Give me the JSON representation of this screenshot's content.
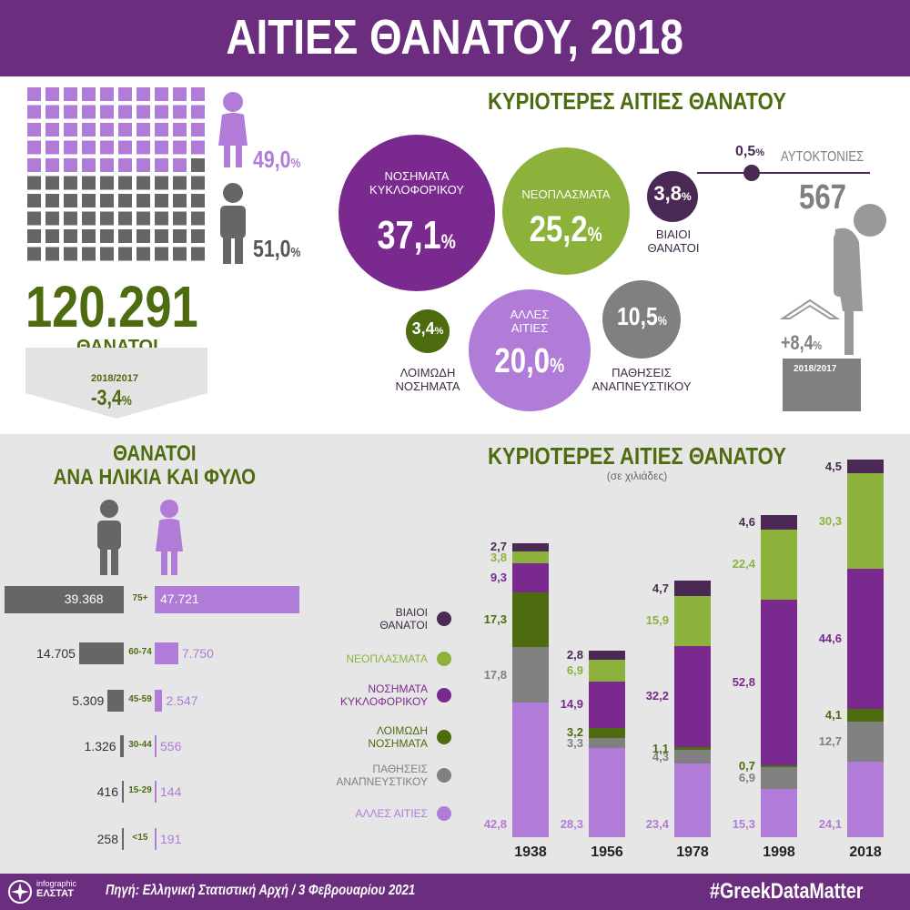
{
  "header": {
    "title": "ΑΙΤΙΕΣ ΘΑΝΑΤΟΥ, 2018"
  },
  "colors": {
    "purple_dark": "#6b2d7e",
    "violet": "#7a2a8f",
    "lilac": "#b07cd8",
    "green_light": "#8db23c",
    "green_dark": "#4d6b0f",
    "gray": "#808080",
    "violent": "#4a2a55"
  },
  "totals": {
    "women_pct": "49,0",
    "men_pct": "51,0",
    "percent_sign": "%",
    "deaths_total": "120.291",
    "deaths_label": "ΘΑΝΑΤΟΙ",
    "change_period": "2018/2017",
    "change_value": "-3,4",
    "women_squares": 49
  },
  "causes": {
    "title": "ΚΥΡΙΟΤΕΡΕΣ ΑΙΤΙΕΣ ΘΑΝΑΤΟΥ",
    "circulatory": {
      "label1": "ΝΟΣΗΜΑΤΑ",
      "label2": "ΚΥΚΛΟΦΟΡΙΚΟΥ",
      "value": "37,1"
    },
    "neoplasms": {
      "label": "ΝΕΟΠΛΑΣΜΑΤΑ",
      "value": "25,2"
    },
    "violent": {
      "value": "3,8",
      "label1": "ΒΙΑΙΟΙ",
      "label2": "ΘΑΝΑΤΟΙ"
    },
    "suicides": {
      "value": "0,5",
      "label": "ΑΥΤΟΚΤΟΝΙΕΣ",
      "count": "567",
      "change": "+8,4",
      "period": "2018/2017"
    },
    "infectious": {
      "value": "3,4",
      "label1": "ΛΟΙΜΩΔΗ",
      "label2": "ΝΟΣΗΜΑΤΑ"
    },
    "other": {
      "label1": "ΑΛΛΕΣ",
      "label2": "ΑΙΤΙΕΣ",
      "value": "20,0"
    },
    "respiratory": {
      "value": "10,5",
      "label1": "ΠΑΘΗΣΕΙΣ",
      "label2": "ΑΝΑΠΝΕΥΣΤΙΚΟΥ"
    }
  },
  "age_sex": {
    "title1": "ΘΑΝΑΤΟΙ",
    "title2": "ΑΝΑ ΗΛΙΚΙΑ ΚΑΙ ΦΥΛΟ",
    "rows": [
      {
        "group": "75+",
        "men": 39368,
        "women": 47721,
        "men_label": "39.368",
        "women_label": "47.721"
      },
      {
        "group": "60-74",
        "men": 14705,
        "women": 7750,
        "men_label": "14.705",
        "women_label": "7.750"
      },
      {
        "group": "45-59",
        "men": 5309,
        "women": 2547,
        "men_label": "5.309",
        "women_label": "2.547"
      },
      {
        "group": "30-44",
        "men": 1326,
        "women": 556,
        "men_label": "1.326",
        "women_label": "556"
      },
      {
        "group": "15-29",
        "men": 416,
        "women": 144,
        "men_label": "416",
        "women_label": "144"
      },
      {
        "group": "<15",
        "men": 258,
        "women": 191,
        "men_label": "258",
        "women_label": "191"
      }
    ]
  },
  "chart_data": {
    "type": "bar",
    "stacked": true,
    "title": "ΚΥΡΙΟΤΕΡΕΣ ΑΙΤΙΕΣ ΘΑΝΑΤΟΥ",
    "subtitle": "(σε χιλιάδες)",
    "categories": [
      "1938",
      "1956",
      "1978",
      "1998",
      "2018"
    ],
    "series": [
      {
        "name": "ΑΛΛΕΣ ΑΙΤΙΕΣ",
        "color": "#b07cd8",
        "values": [
          42.8,
          28.3,
          23.4,
          15.3,
          24.1
        ],
        "labels": [
          "42,8",
          "28,3",
          "23,4",
          "15,3",
          "24,1"
        ]
      },
      {
        "name": "ΠΑΘΗΣΕΙΣ ΑΝΑΠΝΕΥΣΤΙΚΟΥ",
        "color": "#808080",
        "values": [
          17.8,
          3.3,
          4.3,
          6.9,
          12.7
        ],
        "labels": [
          "17,8",
          "3,3",
          "4,3",
          "6,9",
          "12,7"
        ]
      },
      {
        "name": "ΛΟΙΜΩΔΗ ΝΟΣΗΜΑΤΑ",
        "color": "#4d6b0f",
        "values": [
          17.3,
          3.2,
          1.1,
          0.7,
          4.1
        ],
        "labels": [
          "17,3",
          "3,2",
          "1,1",
          "0,7",
          "4,1"
        ]
      },
      {
        "name": "ΝΟΣΗΜΑΤΑ ΚΥΚΛΟΦΟΡΙΚΟΥ",
        "color": "#7a2a8f",
        "values": [
          9.3,
          14.9,
          32.2,
          52.8,
          44.6
        ],
        "labels": [
          "9,3",
          "14,9",
          "32,2",
          "52,8",
          "44,6"
        ]
      },
      {
        "name": "ΝΕΟΠΛΑΣΜΑΤΑ",
        "color": "#8db23c",
        "values": [
          3.8,
          6.9,
          15.9,
          22.4,
          30.3
        ],
        "labels": [
          "3,8",
          "6,9",
          "15,9",
          "22,4",
          "30,3"
        ]
      },
      {
        "name": "ΒΙΑΙΟΙ ΘΑΝΑΤΟΙ",
        "color": "#4a2a55",
        "values": [
          2.7,
          2.8,
          4.7,
          4.6,
          4.5
        ],
        "labels": [
          "2,7",
          "2,8",
          "4,7",
          "4,6",
          "4,5"
        ]
      }
    ]
  },
  "legend": [
    {
      "line1": "ΒΙΑΙΟΙ",
      "line2": "ΘΑΝΑΤΟΙ",
      "color": "#4a2a55",
      "text_color": "#3d2a45"
    },
    {
      "line1": "ΝΕΟΠΛΑΣΜΑΤΑ",
      "line2": "",
      "color": "#8db23c",
      "text_color": "#8db23c"
    },
    {
      "line1": "ΝΟΣΗΜΑΤΑ",
      "line2": "ΚΥΚΛΟΦΟΡΙΚΟΥ",
      "color": "#7a2a8f",
      "text_color": "#7a2a8f"
    },
    {
      "line1": "ΛΟΙΜΩΔΗ",
      "line2": "ΝΟΣΗΜΑΤΑ",
      "color": "#4d6b0f",
      "text_color": "#4d6b0f"
    },
    {
      "line1": "ΠΑΘΗΣΕΙΣ",
      "line2": "ΑΝΑΠΝΕΥΣΤΙΚΟΥ",
      "color": "#808080",
      "text_color": "#808080"
    },
    {
      "line1": "ΑΛΛΕΣ ΑΙΤΙΕΣ",
      "line2": "",
      "color": "#b07cd8",
      "text_color": "#b07cd8"
    }
  ],
  "footer": {
    "logo_line1": "infographic",
    "logo_line2": "ΕΛΣΤΑΤ",
    "source": "Πηγή: Ελληνική Στατιστική Αρχή  / 3 Φεβρουαρίου 2021",
    "hashtag": "#GreekDataMatter"
  }
}
